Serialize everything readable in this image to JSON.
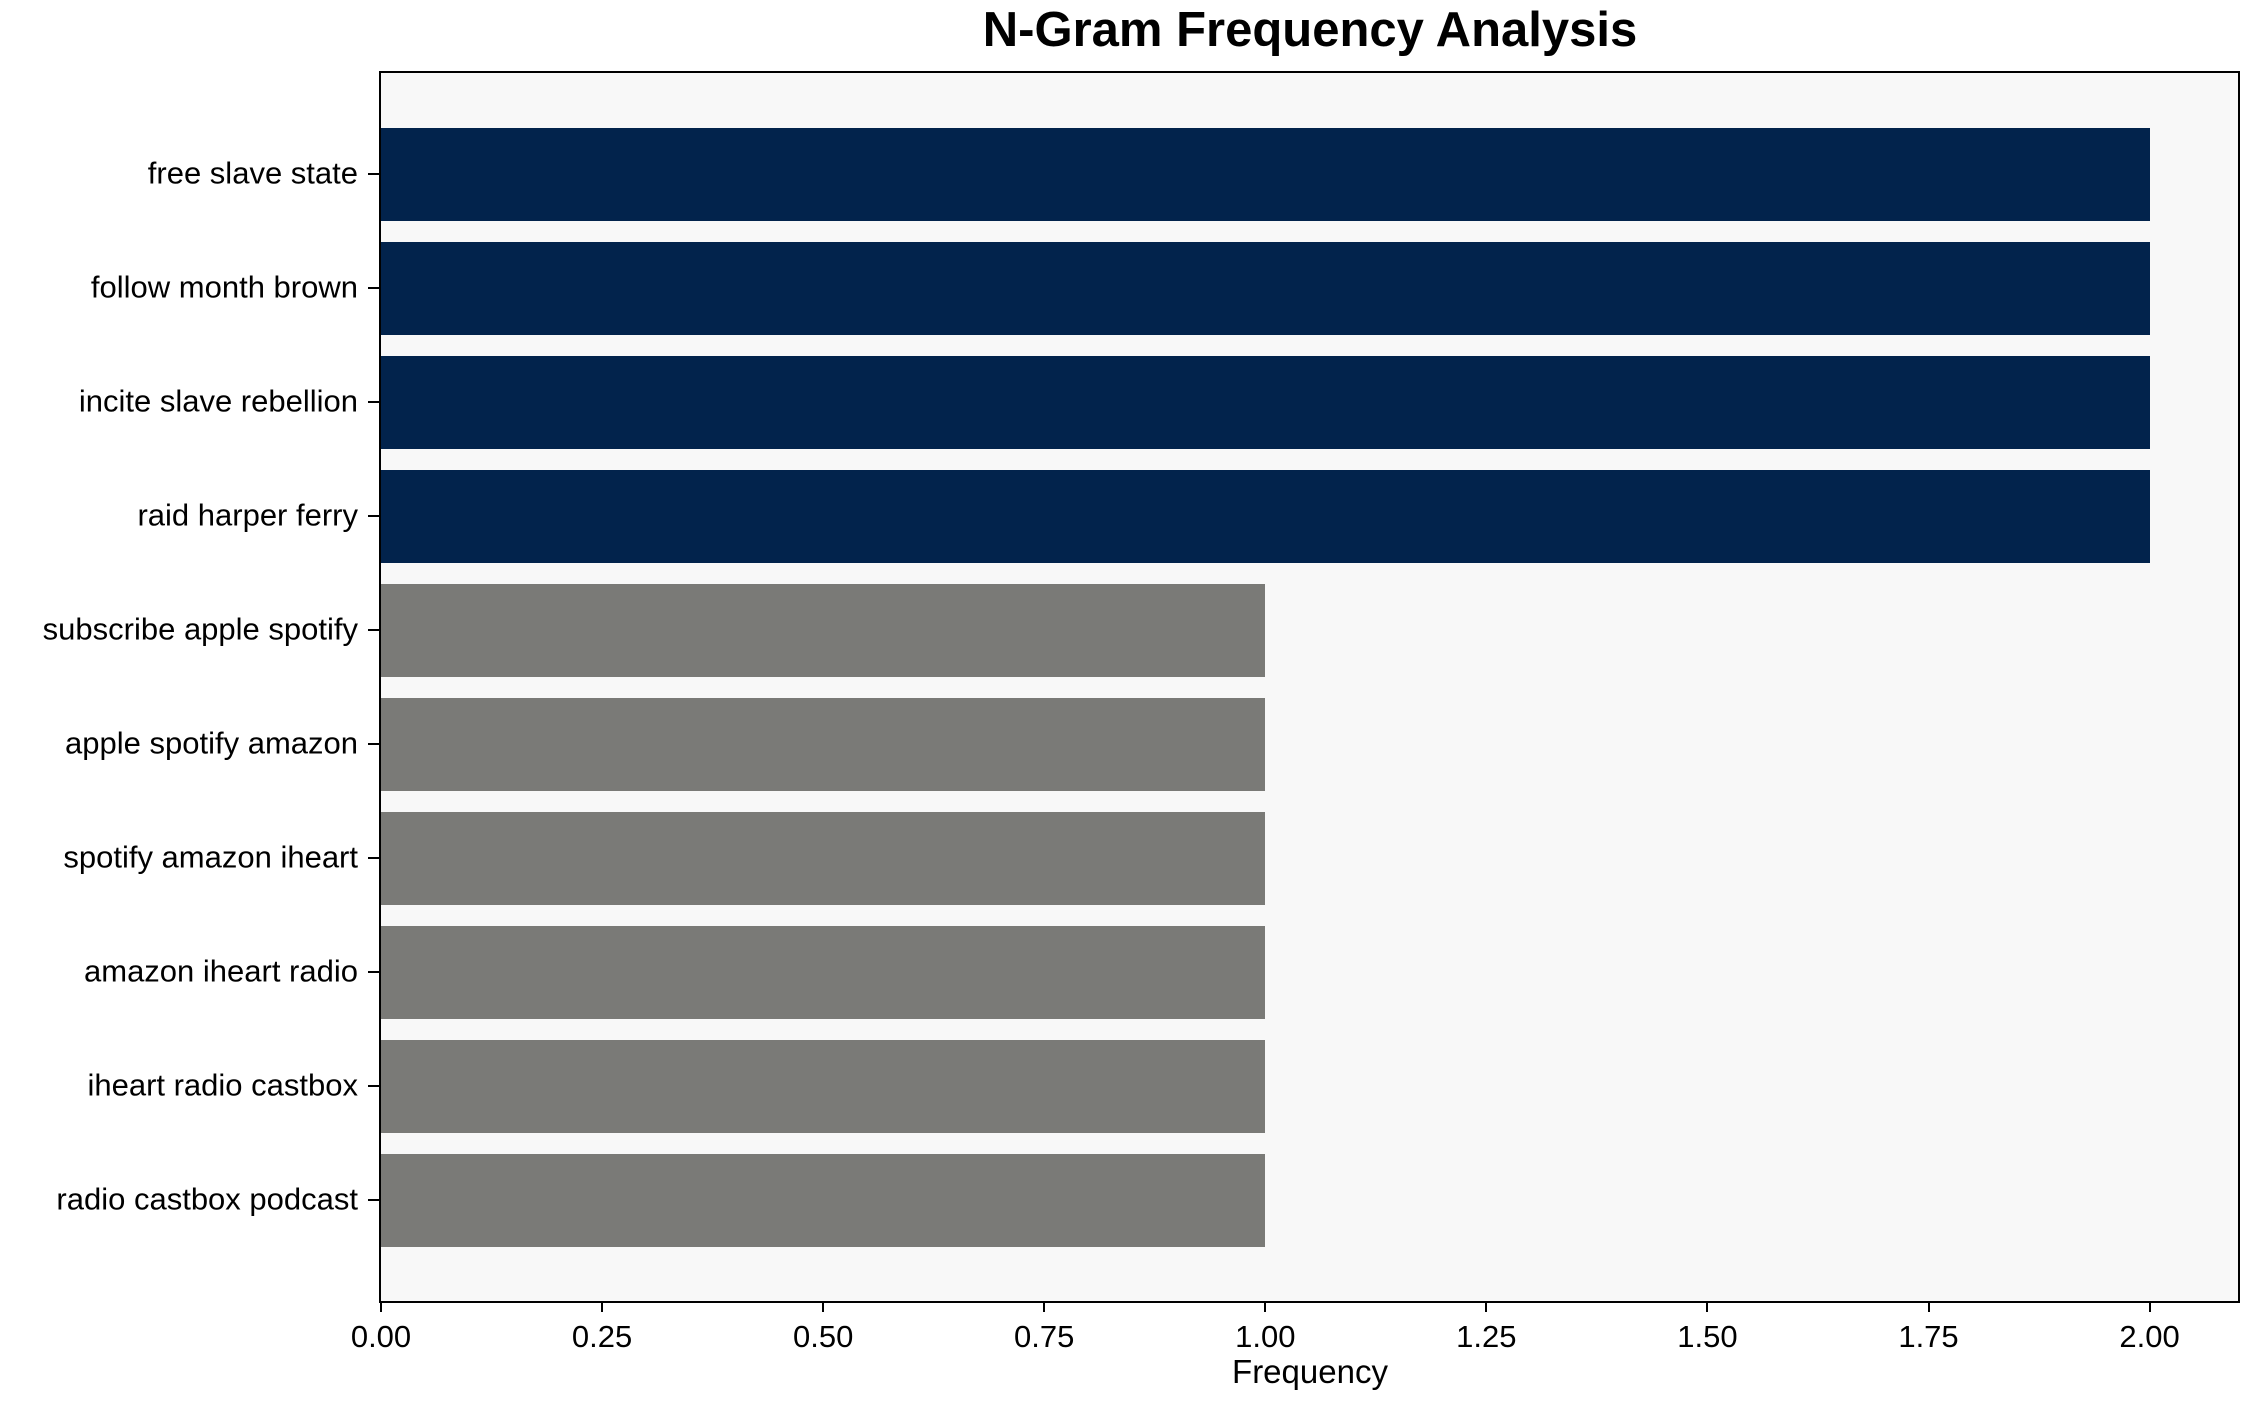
{
  "chart_data": {
    "type": "bar",
    "orientation": "horizontal",
    "title": "N-Gram Frequency Analysis",
    "xlabel": "Frequency",
    "ylabel": "",
    "categories": [
      "free slave state",
      "follow month brown",
      "incite slave rebellion",
      "raid harper ferry",
      "subscribe apple spotify",
      "apple spotify amazon",
      "spotify amazon iheart",
      "amazon iheart radio",
      "iheart radio castbox",
      "radio castbox podcast"
    ],
    "values": [
      2,
      2,
      2,
      2,
      1,
      1,
      1,
      1,
      1,
      1
    ],
    "bar_colors": [
      "#02234c",
      "#02234c",
      "#02234c",
      "#02234c",
      "#7a7a77",
      "#7a7a77",
      "#7a7a77",
      "#7a7a77",
      "#7a7a77",
      "#7a7a77"
    ],
    "xlim": [
      0,
      2.1
    ],
    "xticks": [
      0,
      0.25,
      0.5,
      0.75,
      1.0,
      1.25,
      1.5,
      1.75,
      2.0
    ],
    "xtick_labels": [
      "0.00",
      "0.25",
      "0.50",
      "0.75",
      "1.00",
      "1.25",
      "1.50",
      "1.75",
      "2.00"
    ],
    "grid": false,
    "legend_position": "none",
    "plot_background": "#f8f8f8",
    "figure_background": "#ffffff",
    "axis_color": "#000000",
    "highlight_color": "#02234c",
    "muted_color": "#7a7a77"
  }
}
